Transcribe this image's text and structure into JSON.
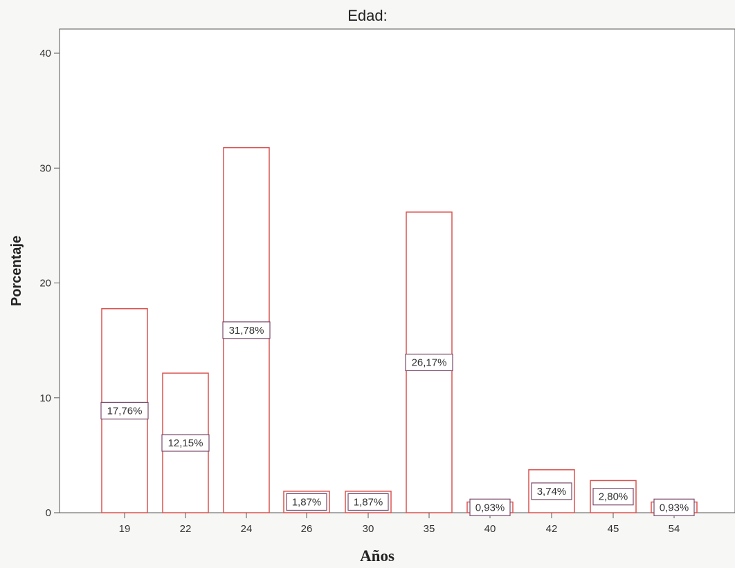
{
  "chart_data": {
    "type": "bar",
    "title": "Edad:",
    "xlabel": "Años",
    "ylabel": "Porcentaje",
    "categories": [
      "19",
      "22",
      "24",
      "26",
      "30",
      "35",
      "40",
      "42",
      "45",
      "54"
    ],
    "values": [
      17.76,
      12.15,
      31.78,
      1.87,
      1.87,
      26.17,
      0.93,
      3.74,
      2.8,
      0.93
    ],
    "data_labels": [
      "17,76%",
      "12,15%",
      "31,78%",
      "1,87%",
      "1,87%",
      "26,17%",
      "0,93%",
      "3,74%",
      "2,80%",
      "0,93%"
    ],
    "yticks": [
      0,
      10,
      20,
      30,
      40
    ],
    "ylim": [
      0,
      40
    ],
    "grid": false,
    "legend": "none",
    "colors": {
      "bar_stroke": "#d9534f",
      "bar_fill": "#ffffff",
      "label_box_stroke": "#7a4a6a",
      "axis": "#555555",
      "plot_bg": "#ffffff"
    }
  }
}
